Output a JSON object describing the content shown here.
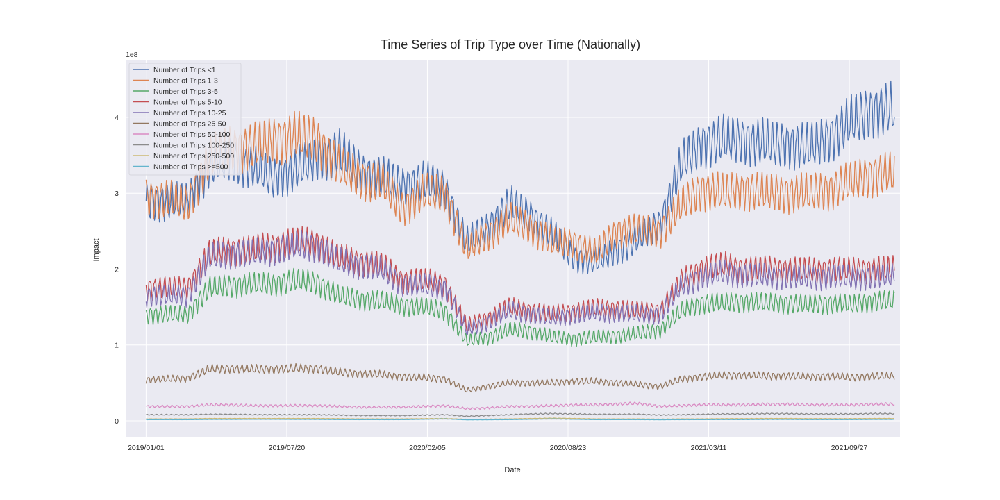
{
  "chart_data": {
    "type": "line",
    "title": "Time Series of Trip Type over Time (Nationally)",
    "xlabel": "Date",
    "ylabel": "Impact",
    "y_offset_text": "1e8",
    "y_scale_factor": 100000000,
    "x_tick_labels": [
      "2019/01/01",
      "2019/07/20",
      "2020/02/05",
      "2020/08/23",
      "2021/03/11",
      "2021/09/27"
    ],
    "x_range": [
      "2018-12-03",
      "2021-12-08"
    ],
    "y_range": [
      -22000000,
      475000000
    ],
    "y_ticks": [
      0,
      100000000,
      200000000,
      300000000,
      400000000
    ],
    "y_tick_labels": [
      "0",
      "1",
      "2",
      "3",
      "4"
    ],
    "grid": true,
    "legend_position": "top-left",
    "x": [
      "2019-01-01",
      "2019-02-01",
      "2019-03-01",
      "2019-04-01",
      "2019-05-01",
      "2019-06-01",
      "2019-07-01",
      "2019-08-01",
      "2019-09-01",
      "2019-10-01",
      "2019-11-01",
      "2019-12-01",
      "2020-01-01",
      "2020-02-01",
      "2020-03-01",
      "2020-04-01",
      "2020-05-01",
      "2020-06-01",
      "2020-07-01",
      "2020-08-01",
      "2020-09-01",
      "2020-10-01",
      "2020-11-01",
      "2020-12-01",
      "2021-01-01",
      "2021-02-01",
      "2021-03-01",
      "2021-04-01",
      "2021-05-01",
      "2021-06-01",
      "2021-07-01",
      "2021-08-01",
      "2021-09-01",
      "2021-10-01",
      "2021-11-01"
    ],
    "series": [
      {
        "name": "Number of Trips <1",
        "color": "#4c72b0",
        "values": [
          290000000,
          288000000,
          290000000,
          335000000,
          345000000,
          335000000,
          320000000,
          330000000,
          345000000,
          355000000,
          330000000,
          320000000,
          310000000,
          315000000,
          305000000,
          235000000,
          255000000,
          285000000,
          270000000,
          245000000,
          215000000,
          210000000,
          225000000,
          240000000,
          260000000,
          340000000,
          365000000,
          370000000,
          370000000,
          365000000,
          365000000,
          360000000,
          375000000,
          395000000,
          410000000
        ]
      },
      {
        "name": "Number of Trips 1-3",
        "color": "#dd8452",
        "values": [
          295000000,
          292000000,
          285000000,
          345000000,
          360000000,
          360000000,
          370000000,
          375000000,
          370000000,
          335000000,
          320000000,
          315000000,
          280000000,
          300000000,
          300000000,
          225000000,
          245000000,
          265000000,
          255000000,
          235000000,
          235000000,
          220000000,
          250000000,
          250000000,
          250000000,
          285000000,
          305000000,
          300000000,
          305000000,
          300000000,
          300000000,
          300000000,
          305000000,
          315000000,
          325000000
        ]
      },
      {
        "name": "Number of Trips 3-5",
        "color": "#55a868",
        "values": [
          140000000,
          140000000,
          140000000,
          175000000,
          178000000,
          180000000,
          180000000,
          185000000,
          182000000,
          165000000,
          160000000,
          158000000,
          152000000,
          150000000,
          145000000,
          105000000,
          110000000,
          120000000,
          118000000,
          110000000,
          108000000,
          110000000,
          112000000,
          115000000,
          120000000,
          145000000,
          155000000,
          155000000,
          157000000,
          155000000,
          155000000,
          153000000,
          155000000,
          153000000,
          158000000
        ]
      },
      {
        "name": "Number of Trips 5-10",
        "color": "#c44e52",
        "values": [
          175000000,
          175000000,
          175000000,
          220000000,
          225000000,
          225000000,
          230000000,
          235000000,
          235000000,
          215000000,
          210000000,
          205000000,
          185000000,
          185000000,
          180000000,
          125000000,
          135000000,
          150000000,
          145000000,
          140000000,
          145000000,
          148000000,
          148000000,
          145000000,
          145000000,
          185000000,
          200000000,
          205000000,
          200000000,
          200000000,
          200000000,
          198000000,
          200000000,
          198000000,
          200000000
        ]
      },
      {
        "name": "Number of Trips 10-25",
        "color": "#8172b3",
        "values": [
          165000000,
          165000000,
          165000000,
          215000000,
          220000000,
          220000000,
          225000000,
          230000000,
          230000000,
          210000000,
          205000000,
          200000000,
          180000000,
          178000000,
          175000000,
          120000000,
          130000000,
          145000000,
          140000000,
          135000000,
          140000000,
          142000000,
          142000000,
          140000000,
          140000000,
          178000000,
          190000000,
          195000000,
          192000000,
          190000000,
          190000000,
          188000000,
          190000000,
          188000000,
          190000000
        ]
      },
      {
        "name": "Number of Trips 25-50",
        "color": "#937860",
        "values": [
          54000000,
          55000000,
          56000000,
          68000000,
          69000000,
          68000000,
          68000000,
          69000000,
          69000000,
          64000000,
          62000000,
          61000000,
          58000000,
          57000000,
          55000000,
          40000000,
          45000000,
          50000000,
          50000000,
          50000000,
          52000000,
          52000000,
          50000000,
          48000000,
          45000000,
          55000000,
          58000000,
          60000000,
          60000000,
          59000000,
          59000000,
          58000000,
          59000000,
          57000000,
          59000000
        ]
      },
      {
        "name": "Number of Trips 50-100",
        "color": "#da8bc3",
        "values": [
          19000000,
          19000000,
          19000000,
          21000000,
          21000000,
          20000000,
          20000000,
          20000000,
          20000000,
          19000000,
          18000000,
          18000000,
          18000000,
          19000000,
          20000000,
          16000000,
          17000000,
          19000000,
          19000000,
          20000000,
          21000000,
          21000000,
          22000000,
          23000000,
          19000000,
          20000000,
          21000000,
          21000000,
          21000000,
          22000000,
          22000000,
          21000000,
          21000000,
          21000000,
          22000000
        ]
      },
      {
        "name": "Number of Trips 100-250",
        "color": "#8c8c8c",
        "values": [
          8000000,
          8000000,
          8000000,
          8500000,
          8500000,
          8000000,
          8000000,
          8000000,
          8000000,
          7500000,
          7000000,
          7000000,
          7000000,
          7500000,
          8000000,
          6000000,
          7000000,
          8000000,
          9000000,
          9500000,
          9000000,
          8500000,
          8500000,
          8500000,
          7500000,
          8000000,
          8500000,
          9000000,
          9000000,
          9500000,
          9500000,
          9000000,
          9000000,
          9000000,
          9500000
        ]
      },
      {
        "name": "Number of Trips 250-500",
        "color": "#ccb974",
        "values": [
          2500000,
          2500000,
          2500000,
          3000000,
          3000000,
          3000000,
          3000000,
          3000000,
          3000000,
          2800000,
          2500000,
          2500000,
          2500000,
          2800000,
          3000000,
          2000000,
          2200000,
          2500000,
          3000000,
          3500000,
          3000000,
          2500000,
          2500000,
          2500000,
          2200000,
          2500000,
          2500000,
          2800000,
          2800000,
          3000000,
          3000000,
          2800000,
          2800000,
          2800000,
          3000000
        ]
      },
      {
        "name": "Number of Trips >=500",
        "color": "#64b5cd",
        "values": [
          1500000,
          1500000,
          1500000,
          1800000,
          1800000,
          2000000,
          2000000,
          1800000,
          1800000,
          1600000,
          1500000,
          1500000,
          1500000,
          2000000,
          2500000,
          1200000,
          1300000,
          1500000,
          2000000,
          2500000,
          2000000,
          1500000,
          1500000,
          1500000,
          1300000,
          1500000,
          1500000,
          1600000,
          1600000,
          1800000,
          1800000,
          1600000,
          1600000,
          1600000,
          1800000
        ]
      }
    ]
  }
}
